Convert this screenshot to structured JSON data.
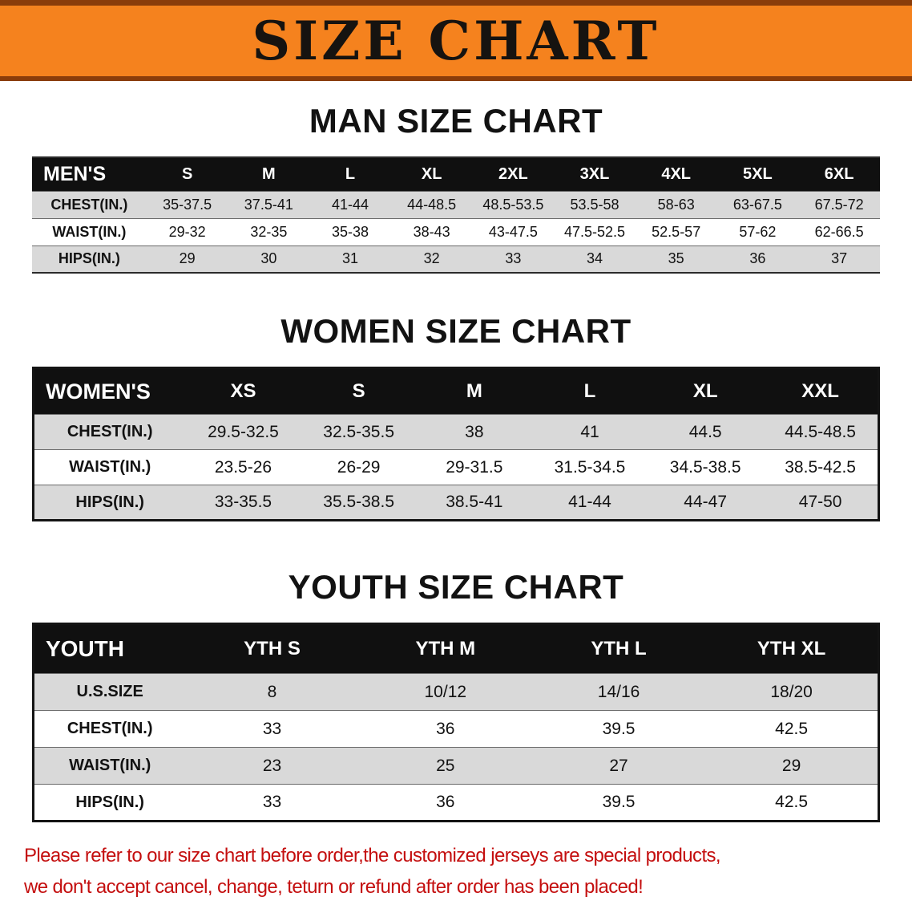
{
  "banner": {
    "title": "SIZE CHART",
    "bg_color": "#F5821E",
    "edge_color": "#8a3c0a",
    "text_color": "#161310"
  },
  "colors": {
    "table_header_bg": "#101010",
    "table_row_alt_bg": "#D9D9D9",
    "disclaimer_text": "#C40F0F"
  },
  "sections": [
    {
      "heading": "MAN SIZE CHART",
      "table": {
        "label": "MEN'S",
        "columns": [
          "S",
          "M",
          "L",
          "XL",
          "2XL",
          "3XL",
          "4XL",
          "5XL",
          "6XL"
        ],
        "rows": [
          {
            "label": "CHEST(IN.)",
            "values": [
              "35-37.5",
              "37.5-41",
              "41-44",
              "44-48.5",
              "48.5-53.5",
              "53.5-58",
              "58-63",
              "63-67.5",
              "67.5-72"
            ]
          },
          {
            "label": "WAIST(IN.)",
            "values": [
              "29-32",
              "32-35",
              "35-38",
              "38-43",
              "43-47.5",
              "47.5-52.5",
              "52.5-57",
              "57-62",
              "62-66.5"
            ]
          },
          {
            "label": "HIPS(IN.)",
            "values": [
              "29",
              "30",
              "31",
              "32",
              "33",
              "34",
              "35",
              "36",
              "37"
            ]
          }
        ]
      }
    },
    {
      "heading": "WOMEN SIZE CHART",
      "table": {
        "label": "WOMEN'S",
        "columns": [
          "XS",
          "S",
          "M",
          "L",
          "XL",
          "XXL"
        ],
        "rows": [
          {
            "label": "CHEST(IN.)",
            "values": [
              "29.5-32.5",
              "32.5-35.5",
              "38",
              "41",
              "44.5",
              "44.5-48.5"
            ]
          },
          {
            "label": "WAIST(IN.)",
            "values": [
              "23.5-26",
              "26-29",
              "29-31.5",
              "31.5-34.5",
              "34.5-38.5",
              "38.5-42.5"
            ]
          },
          {
            "label": "HIPS(IN.)",
            "values": [
              "33-35.5",
              "35.5-38.5",
              "38.5-41",
              "41-44",
              "44-47",
              "47-50"
            ]
          }
        ]
      }
    },
    {
      "heading": "YOUTH SIZE CHART",
      "table": {
        "label": "YOUTH",
        "columns": [
          "YTH S",
          "YTH M",
          "YTH L",
          "YTH XL"
        ],
        "rows": [
          {
            "label": "U.S.SIZE",
            "values": [
              "8",
              "10/12",
              "14/16",
              "18/20"
            ]
          },
          {
            "label": "CHEST(IN.)",
            "values": [
              "33",
              "36",
              "39.5",
              "42.5"
            ]
          },
          {
            "label": "WAIST(IN.)",
            "values": [
              "23",
              "25",
              "27",
              "29"
            ]
          },
          {
            "label": "HIPS(IN.)",
            "values": [
              "33",
              "36",
              "39.5",
              "42.5"
            ]
          }
        ]
      }
    }
  ],
  "disclaimer": {
    "line1": "Please refer to our size chart before order,the customized jerseys are special products,",
    "line2": "we don't accept cancel, change, teturn or refund after order has been placed!"
  }
}
